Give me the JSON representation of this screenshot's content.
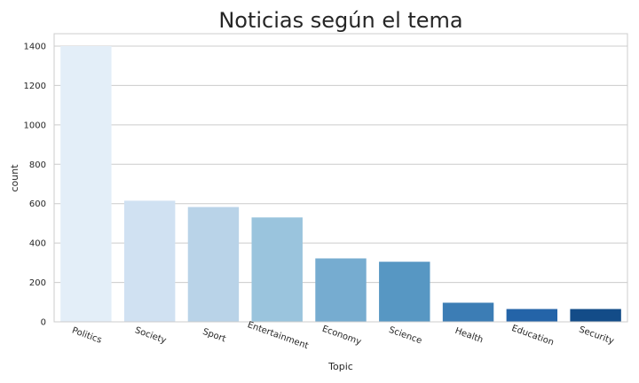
{
  "chart_data": {
    "type": "bar",
    "title": "Noticias según el tema",
    "xlabel": "Topic",
    "ylabel": "count",
    "categories": [
      "Politics",
      "Society",
      "Sport",
      "Entertainment",
      "Economy",
      "Science",
      "Health",
      "Education",
      "Security"
    ],
    "values": [
      1400,
      615,
      583,
      530,
      322,
      305,
      97,
      65,
      65
    ],
    "colors": [
      "#e3eef8",
      "#d0e1f2",
      "#b9d3e8",
      "#9ac4dd",
      "#76acd0",
      "#5797c3",
      "#3c7db5",
      "#2464a8",
      "#134c88"
    ],
    "yticks": [
      0,
      200,
      400,
      600,
      800,
      1000,
      1200,
      1400
    ],
    "ylim": [
      0,
      1463
    ],
    "grid": true,
    "legend": "none"
  }
}
